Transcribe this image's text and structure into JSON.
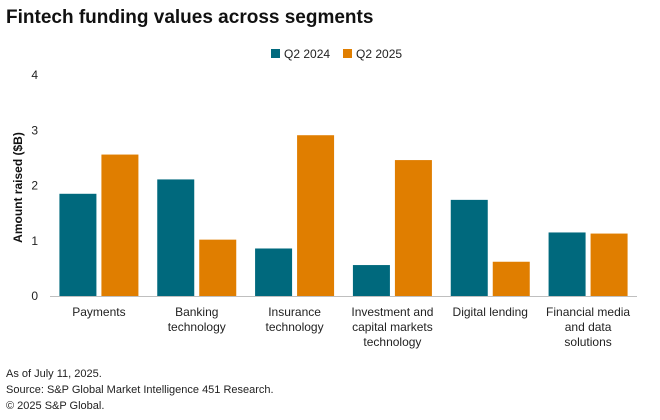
{
  "chart_data": {
    "type": "bar",
    "title": "Fintech funding values across segments",
    "ylabel": "Amount raised ($B)",
    "xlabel": "",
    "ylim": [
      0,
      4
    ],
    "yticks": [
      "0",
      "1",
      "2",
      "3",
      "4"
    ],
    "grid": false,
    "legend": "top-center",
    "categories": [
      [
        "Payments"
      ],
      [
        "Banking",
        "technology"
      ],
      [
        "Insurance",
        "technology"
      ],
      [
        "Investment and",
        "capital markets",
        "technology"
      ],
      [
        "Digital lending"
      ],
      [
        "Financial media",
        "and data",
        "solutions"
      ]
    ],
    "series": [
      {
        "name": "Q2 2024",
        "color": "#00697d",
        "values": [
          1.85,
          2.11,
          0.86,
          0.56,
          1.74,
          1.15
        ]
      },
      {
        "name": "Q2 2025",
        "color": "#e07e00",
        "values": [
          2.56,
          1.02,
          2.91,
          2.46,
          0.62,
          1.13
        ]
      }
    ]
  },
  "footer": {
    "note": "As of July 11, 2025.",
    "source": "Source: S&P Global Market Intelligence 451 Research.",
    "copyright": "© 2025 S&P Global."
  }
}
